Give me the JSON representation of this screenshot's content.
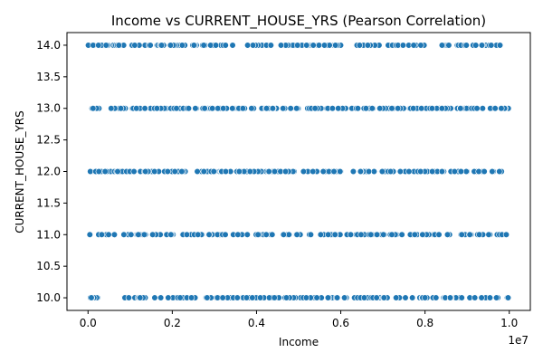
{
  "chart_data": {
    "type": "scatter",
    "title": "Income vs CURRENT_HOUSE_YRS (Pearson Correlation)",
    "xlabel": "Income",
    "ylabel": "CURRENT_HOUSE_YRS",
    "x_scale_label": "1e7",
    "xlim": [
      -0.05,
      1.05
    ],
    "ylim": [
      9.8,
      14.2
    ],
    "x_ticks": [
      0.0,
      0.2,
      0.4,
      0.6,
      0.8,
      1.0
    ],
    "x_tick_labels": [
      "0.0",
      "0.2",
      "0.4",
      "0.6",
      "0.8",
      "1.0"
    ],
    "y_ticks": [
      10.0,
      10.5,
      11.0,
      11.5,
      12.0,
      12.5,
      13.0,
      13.5,
      14.0
    ],
    "y_tick_labels": [
      "10.0",
      "10.5",
      "11.0",
      "11.5",
      "12.0",
      "12.5",
      "13.0",
      "13.5",
      "14.0"
    ],
    "y_levels": [
      10,
      11,
      12,
      13,
      14
    ],
    "x_range": [
      0.0,
      1.0
    ],
    "grid": false,
    "marker_color": "#1f77b4",
    "marker_edge_color": "#ffffff"
  }
}
